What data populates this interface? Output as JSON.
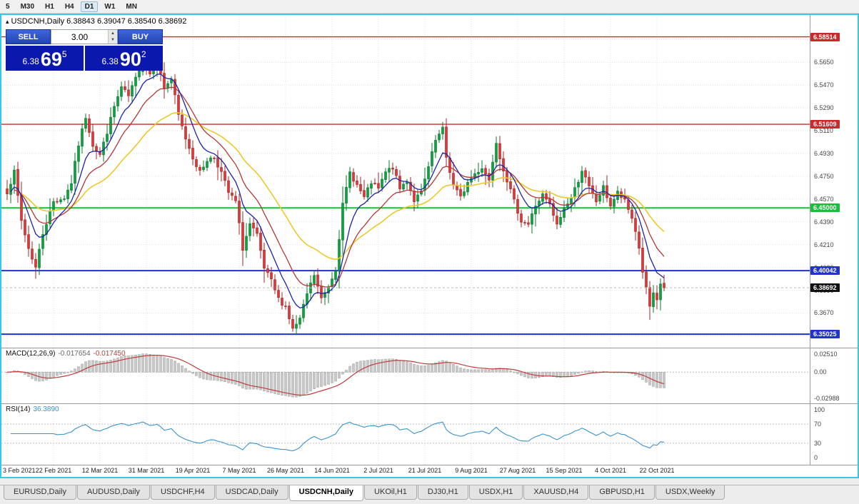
{
  "toolbar": {
    "timeframes": [
      {
        "label": "5",
        "active": false
      },
      {
        "label": "M30",
        "active": false
      },
      {
        "label": "H1",
        "active": false
      },
      {
        "label": "H4",
        "active": false
      },
      {
        "label": "D1",
        "active": true
      },
      {
        "label": "W1",
        "active": false
      },
      {
        "label": "MN",
        "active": false
      }
    ]
  },
  "chart": {
    "collapse_icon": "▴",
    "symbol_label": "USDCNH,Daily",
    "ohlc": "6.38843 6.39047 6.38540 6.38692"
  },
  "one_click": {
    "sell_label": "SELL",
    "buy_label": "BUY",
    "volume": "3.00",
    "sell_price": {
      "prefix": "6.38",
      "big": "69",
      "sup": "5"
    },
    "buy_price": {
      "prefix": "6.38",
      "big": "90",
      "sup": "2"
    }
  },
  "price_scale": {
    "grid": [
      {
        "p": 6.583,
        "t": "6.5830"
      },
      {
        "p": 6.565,
        "t": "6.5650"
      },
      {
        "p": 6.547,
        "t": "6.5470"
      },
      {
        "p": 6.529,
        "t": "6.5290"
      },
      {
        "p": 6.511,
        "t": "6.5110"
      },
      {
        "p": 6.493,
        "t": "6.4930"
      },
      {
        "p": 6.475,
        "t": "6.4750"
      },
      {
        "p": 6.457,
        "t": "6.4570"
      },
      {
        "p": 6.439,
        "t": "6.4390"
      },
      {
        "p": 6.421,
        "t": "6.4210"
      },
      {
        "p": 6.403,
        "t": "6.4030"
      },
      {
        "p": 6.385,
        "t": "6.3850"
      },
      {
        "p": 6.367,
        "t": "6.3670"
      },
      {
        "p": 6.349,
        "t": "6.3490"
      }
    ]
  },
  "levels": [
    {
      "price": 6.58514,
      "label": "6.58514",
      "color": "#cc2a2a",
      "width": 1.4
    },
    {
      "price": 6.51609,
      "label": "6.51609",
      "color": "#cc2a2a",
      "width": 1.4
    },
    {
      "price": 6.45,
      "label": "6.45000",
      "color": "#17bf3a",
      "width": 2
    },
    {
      "price": 6.40042,
      "label": "6.40042",
      "color": "#2033cc",
      "width": 2
    },
    {
      "price": 6.35025,
      "label": "6.35025",
      "color": "#2033cc",
      "width": 2
    }
  ],
  "current_price": {
    "value": 6.38692,
    "label": "6.38692",
    "badge_color": "#111111"
  },
  "indicators": {
    "macd": {
      "name": "MACD(12,26,9)",
      "value_main": "-0.017654",
      "value_signal": "-0.017450",
      "scale_top": "0.02510",
      "scale_zero": "0.00",
      "scale_bottom": "-0.02988"
    },
    "rsi": {
      "name": "RSI(14)",
      "value": "36.3890",
      "scale": [
        {
          "v": 100,
          "t": "100"
        },
        {
          "v": 70,
          "t": "70"
        },
        {
          "v": 30,
          "t": "30"
        },
        {
          "v": 0,
          "t": "0"
        }
      ],
      "levels": [
        70,
        30
      ]
    }
  },
  "tabs": [
    {
      "label": "EURUSD,Daily",
      "active": false
    },
    {
      "label": "AUDUSD,Daily",
      "active": false
    },
    {
      "label": "USDCHF,H4",
      "active": false
    },
    {
      "label": "USDCAD,Daily",
      "active": false
    },
    {
      "label": "USDCNH,Daily",
      "active": true
    },
    {
      "label": "UKOil,H1",
      "active": false
    },
    {
      "label": "DJ30,H1",
      "active": false
    },
    {
      "label": "USDX,H1",
      "active": false
    },
    {
      "label": "XAUUSD,H4",
      "active": false
    },
    {
      "label": "GBPUSD,H1",
      "active": false
    },
    {
      "label": "USDX,Weekly",
      "active": false
    }
  ],
  "chart_style": {
    "up_color": "#0aa33e",
    "up_border": "#077a2c",
    "down_color": "#df3838",
    "down_border": "#a82424",
    "ma_blue": "#1d23aa",
    "ma_red": "#b53636",
    "ma_yellow": "#edc928",
    "macd_bar_fill": "#c9c9c9",
    "macd_bar_border": "#9e9e9e",
    "macd_signal": "#c23b3b",
    "rsi_line": "#3a93cc",
    "grid_color": "#e2e2e2",
    "level_dash": "#c0c0c0"
  },
  "chart_data": {
    "type": "candlestick",
    "symbol": "USDCNH",
    "timeframe": "Daily",
    "count": 185,
    "ylim": [
      6.343,
      6.599
    ],
    "close_anchors": [
      [
        0,
        6.463
      ],
      [
        2,
        6.478
      ],
      [
        4,
        6.44
      ],
      [
        6,
        6.418
      ],
      [
        8,
        6.403
      ],
      [
        10,
        6.43
      ],
      [
        13,
        6.455
      ],
      [
        16,
        6.458
      ],
      [
        18,
        6.47
      ],
      [
        20,
        6.5
      ],
      [
        22,
        6.522
      ],
      [
        24,
        6.5
      ],
      [
        26,
        6.492
      ],
      [
        28,
        6.51
      ],
      [
        30,
        6.53
      ],
      [
        32,
        6.545
      ],
      [
        34,
        6.538
      ],
      [
        36,
        6.552
      ],
      [
        38,
        6.568
      ],
      [
        40,
        6.556
      ],
      [
        42,
        6.565
      ],
      [
        44,
        6.545
      ],
      [
        46,
        6.552
      ],
      [
        48,
        6.523
      ],
      [
        50,
        6.505
      ],
      [
        52,
        6.49
      ],
      [
        54,
        6.478
      ],
      [
        56,
        6.488
      ],
      [
        58,
        6.49
      ],
      [
        60,
        6.478
      ],
      [
        62,
        6.462
      ],
      [
        64,
        6.455
      ],
      [
        66,
        6.418
      ],
      [
        68,
        6.437
      ],
      [
        70,
        6.428
      ],
      [
        72,
        6.402
      ],
      [
        74,
        6.392
      ],
      [
        76,
        6.378
      ],
      [
        78,
        6.372
      ],
      [
        80,
        6.354
      ],
      [
        82,
        6.362
      ],
      [
        84,
        6.382
      ],
      [
        86,
        6.397
      ],
      [
        88,
        6.378
      ],
      [
        90,
        6.388
      ],
      [
        92,
        6.402
      ],
      [
        94,
        6.452
      ],
      [
        96,
        6.478
      ],
      [
        98,
        6.468
      ],
      [
        100,
        6.458
      ],
      [
        102,
        6.47
      ],
      [
        104,
        6.465
      ],
      [
        106,
        6.478
      ],
      [
        108,
        6.482
      ],
      [
        110,
        6.465
      ],
      [
        112,
        6.472
      ],
      [
        114,
        6.456
      ],
      [
        116,
        6.462
      ],
      [
        118,
        6.482
      ],
      [
        120,
        6.503
      ],
      [
        122,
        6.512
      ],
      [
        123,
        6.49
      ],
      [
        125,
        6.468
      ],
      [
        127,
        6.458
      ],
      [
        129,
        6.47
      ],
      [
        131,
        6.477
      ],
      [
        133,
        6.482
      ],
      [
        135,
        6.472
      ],
      [
        137,
        6.503
      ],
      [
        138,
        6.49
      ],
      [
        140,
        6.472
      ],
      [
        142,
        6.455
      ],
      [
        144,
        6.44
      ],
      [
        146,
        6.437
      ],
      [
        148,
        6.452
      ],
      [
        150,
        6.46
      ],
      [
        152,
        6.452
      ],
      [
        154,
        6.436
      ],
      [
        156,
        6.45
      ],
      [
        158,
        6.458
      ],
      [
        160,
        6.472
      ],
      [
        161,
        6.48
      ],
      [
        163,
        6.466
      ],
      [
        165,
        6.455
      ],
      [
        167,
        6.466
      ],
      [
        169,
        6.452
      ],
      [
        171,
        6.462
      ],
      [
        173,
        6.455
      ],
      [
        175,
        6.442
      ],
      [
        176,
        6.432
      ],
      [
        177,
        6.418
      ],
      [
        178,
        6.4
      ],
      [
        179,
        6.386
      ],
      [
        180,
        6.372
      ],
      [
        181,
        6.381
      ],
      [
        182,
        6.376
      ],
      [
        183,
        6.39
      ],
      [
        184,
        6.38692
      ]
    ],
    "date_labels": [
      {
        "i": 0,
        "label": "3 Feb 2021"
      },
      {
        "i": 13,
        "label": "22 Feb 2021"
      },
      {
        "i": 26,
        "label": "12 Mar 2021"
      },
      {
        "i": 39,
        "label": "31 Mar 2021"
      },
      {
        "i": 52,
        "label": "19 Apr 2021"
      },
      {
        "i": 65,
        "label": "7 May 2021"
      },
      {
        "i": 78,
        "label": "26 May 2021"
      },
      {
        "i": 91,
        "label": "14 Jun 2021"
      },
      {
        "i": 104,
        "label": "2 Jul 2021"
      },
      {
        "i": 117,
        "label": "21 Jul 2021"
      },
      {
        "i": 130,
        "label": "9 Aug 2021"
      },
      {
        "i": 143,
        "label": "27 Aug 2021"
      },
      {
        "i": 156,
        "label": "15 Sep 2021"
      },
      {
        "i": 169,
        "label": "4 Oct 2021"
      },
      {
        "i": 182,
        "label": "22 Oct 2021"
      }
    ],
    "ma_periods": {
      "blue": 8,
      "red": 16,
      "yellow": 34
    },
    "macd_params": [
      12,
      26,
      9
    ],
    "rsi_period": 14
  }
}
